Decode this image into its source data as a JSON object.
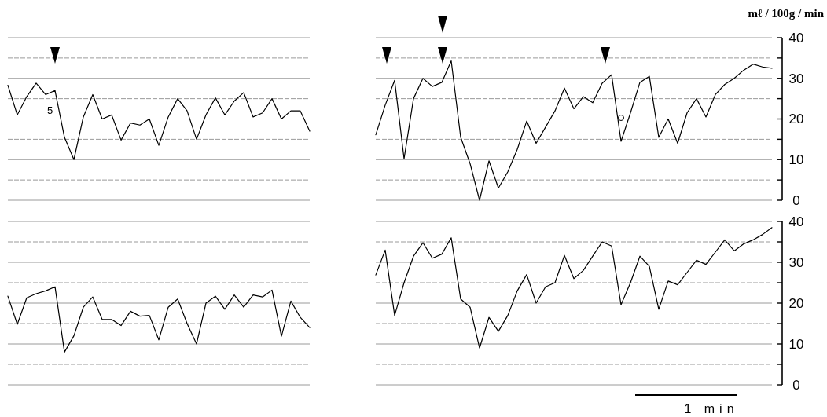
{
  "chart_data": [
    {
      "type": "line",
      "categories": [
        null,
        null,
        null,
        null,
        null,
        null,
        null,
        null,
        null,
        null,
        null,
        null,
        null,
        null,
        null,
        null,
        null,
        null,
        null,
        null,
        null,
        null,
        null,
        null,
        null,
        null,
        null,
        null,
        null,
        null,
        null,
        null,
        null,
        null,
        null,
        null,
        null,
        null,
        null,
        null,
        null,
        null,
        null,
        null,
        null,
        null,
        null,
        null,
        null,
        null,
        null,
        null,
        null,
        null,
        null,
        null,
        null,
        null,
        null,
        null,
        null,
        null,
        null,
        null,
        null,
        null,
        null,
        null,
        null,
        null,
        null,
        null,
        null,
        null,
        null,
        null,
        null,
        null,
        null,
        null,
        null,
        null
      ],
      "series": [
        {
          "color": "#000000",
          "values": [
            28.3,
            21,
            25.5,
            28.8,
            26,
            27,
            15.5,
            10,
            20.5,
            26,
            20,
            21,
            14.8,
            19,
            18.5,
            20,
            13.5,
            20.5,
            25,
            22,
            15,
            21,
            25.2,
            21,
            24.4,
            26.5,
            20.5,
            21.5,
            25,
            20,
            22,
            22,
            17,
            null,
            null,
            null,
            null,
            null,
            null,
            null,
            null,
            null,
            null,
            null,
            null,
            null,
            null,
            null,
            null,
            null,
            null,
            null,
            null,
            null,
            null,
            null,
            null,
            null,
            null,
            null,
            null,
            null,
            null,
            null,
            null,
            null,
            null,
            null,
            null,
            null,
            null,
            null,
            null,
            null,
            null,
            null,
            null,
            null,
            null,
            null,
            null,
            null
          ]
        },
        {
          "color": "#000000",
          "values": [
            null,
            null,
            null,
            null,
            null,
            null,
            null,
            null,
            null,
            null,
            null,
            null,
            null,
            null,
            null,
            null,
            null,
            null,
            null,
            null,
            null,
            null,
            null,
            null,
            null,
            null,
            null,
            null,
            null,
            null,
            null,
            null,
            null,
            null,
            null,
            null,
            null,
            null,
            null,
            16.1,
            23.4,
            29.5,
            10.2,
            25,
            30,
            28,
            29,
            34.3,
            15.5,
            9,
            0,
            9.7,
            3,
            7,
            12.5,
            19.5,
            14,
            18,
            22,
            27.6,
            22.5,
            25.5,
            24,
            28.8,
            30.9,
            14.5,
            21.5,
            29,
            30.5,
            15.5,
            20,
            14,
            21.5,
            25,
            20.5,
            26,
            28.5,
            30,
            32,
            33.5,
            32.8,
            32.5
          ]
        }
      ],
      "ylabel": "mℓ / 100g / min",
      "ylim": [
        0,
        40
      ],
      "yticks": [
        0,
        {
          "value": 5,
          "label": null
        },
        10,
        {
          "value": 15,
          "label": null
        },
        20,
        {
          "value": 25,
          "label": null
        },
        30,
        {
          "value": 35,
          "label": null
        },
        40
      ],
      "grid": "y",
      "annotations": [
        "5"
      ]
    },
    {
      "type": "line",
      "categories": [
        null,
        null,
        null,
        null,
        null,
        null,
        null,
        null,
        null,
        null,
        null,
        null,
        null,
        null,
        null,
        null,
        null,
        null,
        null,
        null,
        null,
        null,
        null,
        null,
        null,
        null,
        null,
        null,
        null,
        null,
        null,
        null,
        null,
        null,
        null,
        null,
        null,
        null,
        null,
        null,
        null,
        null,
        null,
        null,
        null,
        null,
        null,
        null,
        null,
        null,
        null,
        null,
        null,
        null,
        null,
        null,
        null,
        null,
        null,
        null,
        null,
        null,
        null,
        null,
        null,
        null,
        null,
        null,
        null,
        null,
        null,
        null,
        null,
        null,
        null,
        null,
        null,
        null,
        null,
        null,
        null,
        null
      ],
      "series": [
        {
          "color": "#000000",
          "values": [
            21.7,
            14.8,
            21.3,
            22.3,
            23,
            24,
            8,
            12,
            19,
            21.5,
            16,
            16,
            14.5,
            18,
            16.8,
            17,
            11,
            19,
            21,
            15,
            10,
            20,
            21.7,
            18.5,
            22,
            19,
            22,
            21.5,
            23.2,
            11.9,
            20.5,
            16.5,
            14,
            null,
            null,
            null,
            null,
            null,
            null,
            null,
            null,
            null,
            null,
            null,
            null,
            null,
            null,
            null,
            null,
            null,
            null,
            null,
            null,
            null,
            null,
            null,
            null,
            null,
            null,
            null,
            null,
            null,
            null,
            null,
            null,
            null,
            null,
            null,
            null,
            null,
            null,
            null,
            null,
            null,
            null,
            null,
            null,
            null,
            null,
            null,
            null,
            null
          ]
        },
        {
          "color": "#000000",
          "values": [
            null,
            null,
            null,
            null,
            null,
            null,
            null,
            null,
            null,
            null,
            null,
            null,
            null,
            null,
            null,
            null,
            null,
            null,
            null,
            null,
            null,
            null,
            null,
            null,
            null,
            null,
            null,
            null,
            null,
            null,
            null,
            null,
            null,
            null,
            null,
            null,
            null,
            null,
            null,
            26.9,
            33,
            17,
            25,
            31.5,
            34.8,
            31,
            32,
            36,
            21,
            19,
            9,
            16.5,
            13.1,
            17,
            23,
            27,
            20,
            24,
            25,
            31.7,
            26,
            28,
            31.5,
            35,
            34,
            19.6,
            25,
            31.5,
            29,
            18.5,
            25.4,
            24.5,
            27.5,
            30.5,
            29.5,
            32.5,
            35.5,
            32.8,
            34.5,
            35.5,
            36.8,
            38.5
          ]
        }
      ],
      "ylim": [
        0,
        40
      ],
      "yticks": [
        0,
        {
          "value": 5,
          "label": null
        },
        10,
        {
          "value": 15,
          "label": null
        },
        20,
        {
          "value": 25,
          "label": null
        },
        30,
        {
          "value": 35,
          "label": null
        },
        40
      ],
      "grid": "y",
      "annotations": [
        "1 min"
      ]
    }
  ]
}
